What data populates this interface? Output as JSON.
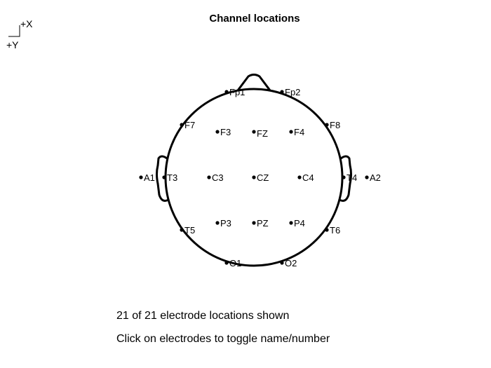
{
  "title": "Channel locations",
  "axis": {
    "x_label": "+X",
    "y_label": "+Y"
  },
  "electrodes": [
    {
      "name": "Fp1"
    },
    {
      "name": "Fp2"
    },
    {
      "name": "F7"
    },
    {
      "name": "F3"
    },
    {
      "name": "FZ"
    },
    {
      "name": "F4"
    },
    {
      "name": "F8"
    },
    {
      "name": "A1"
    },
    {
      "name": "T3"
    },
    {
      "name": "C3"
    },
    {
      "name": "CZ"
    },
    {
      "name": "C4"
    },
    {
      "name": "T4"
    },
    {
      "name": "A2"
    },
    {
      "name": "T5"
    },
    {
      "name": "P3"
    },
    {
      "name": "PZ"
    },
    {
      "name": "P4"
    },
    {
      "name": "T6"
    },
    {
      "name": "O1"
    },
    {
      "name": "O2"
    }
  ],
  "status": {
    "count_text": "21 of 21 electrode locations shown",
    "hint_text": "Click on electrodes to toggle name/number"
  }
}
